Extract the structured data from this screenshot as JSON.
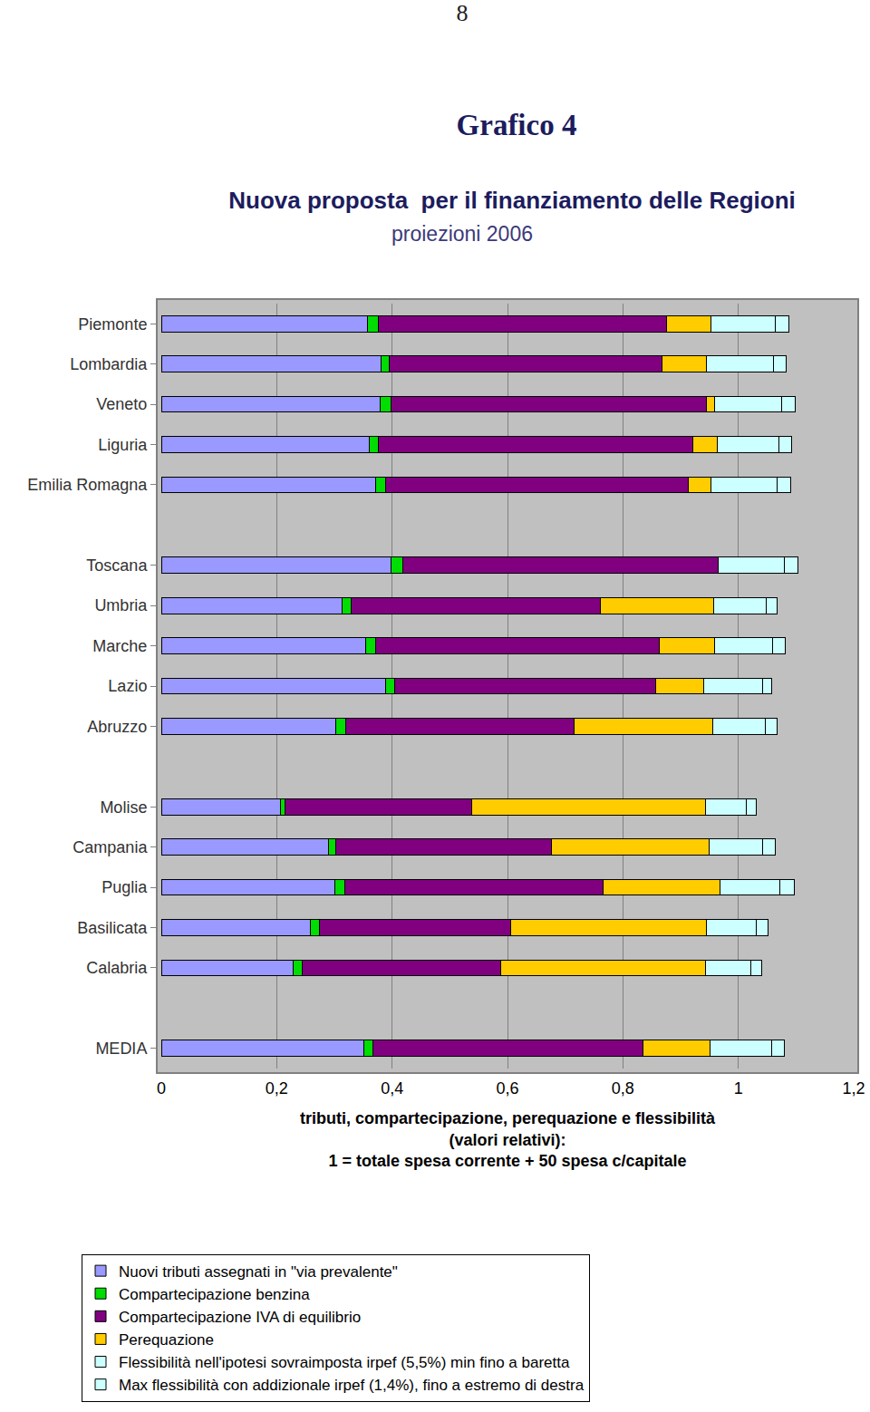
{
  "chart_data": {
    "type": "bar",
    "orientation": "horizontal",
    "stacked": true,
    "page_number": "8",
    "title": "Grafico 4",
    "subtitle": [
      "Nuova proposta  per il finanziamento delle Regioni",
      "proiezioni 2006"
    ],
    "xlabel": [
      "tributi, compartecipazione, perequazione e flessibilità",
      "(valori relativi):",
      "1 = totale spesa corrente + 50 spesa c/capitale"
    ],
    "categories": [
      "Piemonte",
      "Lombardia",
      "Veneto",
      "Liguria",
      "Emilia Romagna",
      null,
      "Toscana",
      "Umbria",
      "Marche",
      "Lazio",
      "Abruzzo",
      null,
      "Molise",
      "Campania",
      "Puglia",
      "Basilicata",
      "Calabria",
      null,
      "MEDIA"
    ],
    "series": [
      {
        "name": "Nuovi tributi assegnati in \"via prevalente\"",
        "color": "#9999ff",
        "values": [
          0.358,
          0.381,
          0.379,
          0.36,
          0.371,
          null,
          0.398,
          0.313,
          0.354,
          0.388,
          0.302,
          null,
          0.206,
          0.289,
          0.3,
          0.258,
          0.228,
          null,
          0.351
        ]
      },
      {
        "name": "Compartecipazione benzina",
        "color": "#00dd00",
        "values": [
          0.018,
          0.014,
          0.019,
          0.016,
          0.017,
          null,
          0.02,
          0.016,
          0.017,
          0.016,
          0.017,
          null,
          0.009,
          0.014,
          0.018,
          0.016,
          0.016,
          null,
          0.015
        ]
      },
      {
        "name": "Compartecipazione IVA di equilibrio",
        "color": "#800080",
        "values": [
          0.5,
          0.473,
          0.547,
          0.545,
          0.526,
          null,
          0.547,
          0.432,
          0.492,
          0.453,
          0.396,
          null,
          0.323,
          0.373,
          0.448,
          0.331,
          0.344,
          null,
          0.469
        ]
      },
      {
        "name": "Perequazione",
        "color": "#ffcc00",
        "values": [
          0.077,
          0.077,
          0.014,
          0.043,
          0.039,
          null,
          0,
          0.197,
          0.096,
          0.083,
          0.241,
          null,
          0.405,
          0.274,
          0.203,
          0.34,
          0.355,
          null,
          0.116
        ]
      },
      {
        "name": "Flessibilità nell'ipotesi sovraimposta irpef (5,5%) min fino a baretta",
        "color": "#ccffff",
        "values": [
          0.111,
          0.116,
          0.116,
          0.107,
          0.115,
          null,
          0.115,
          0.091,
          0.101,
          0.102,
          0.091,
          null,
          0.071,
          0.092,
          0.103,
          0.086,
          0.079,
          null,
          0.107
        ]
      },
      {
        "name": "Max flessibilità con addizionale irpef (1,4%), fino a estremo di destra",
        "color": "#ccffff",
        "values": [
          0.024,
          0.022,
          0.024,
          0.022,
          0.023,
          null,
          0.024,
          0.019,
          0.022,
          0.016,
          0.021,
          null,
          0.017,
          0.022,
          0.025,
          0.021,
          0.019,
          null,
          0.022
        ]
      }
    ],
    "xlim": [
      0,
      1.2
    ],
    "xticks": [
      0,
      {
        "value": 0.2,
        "label": "0,2"
      },
      {
        "value": 0.4,
        "label": "0,4"
      },
      {
        "value": 0.6,
        "label": "0,6"
      },
      {
        "value": 0.8,
        "label": "0,8"
      },
      1,
      {
        "value": 1.2,
        "label": "1,2"
      }
    ],
    "grid": true,
    "legend": "bottom"
  }
}
